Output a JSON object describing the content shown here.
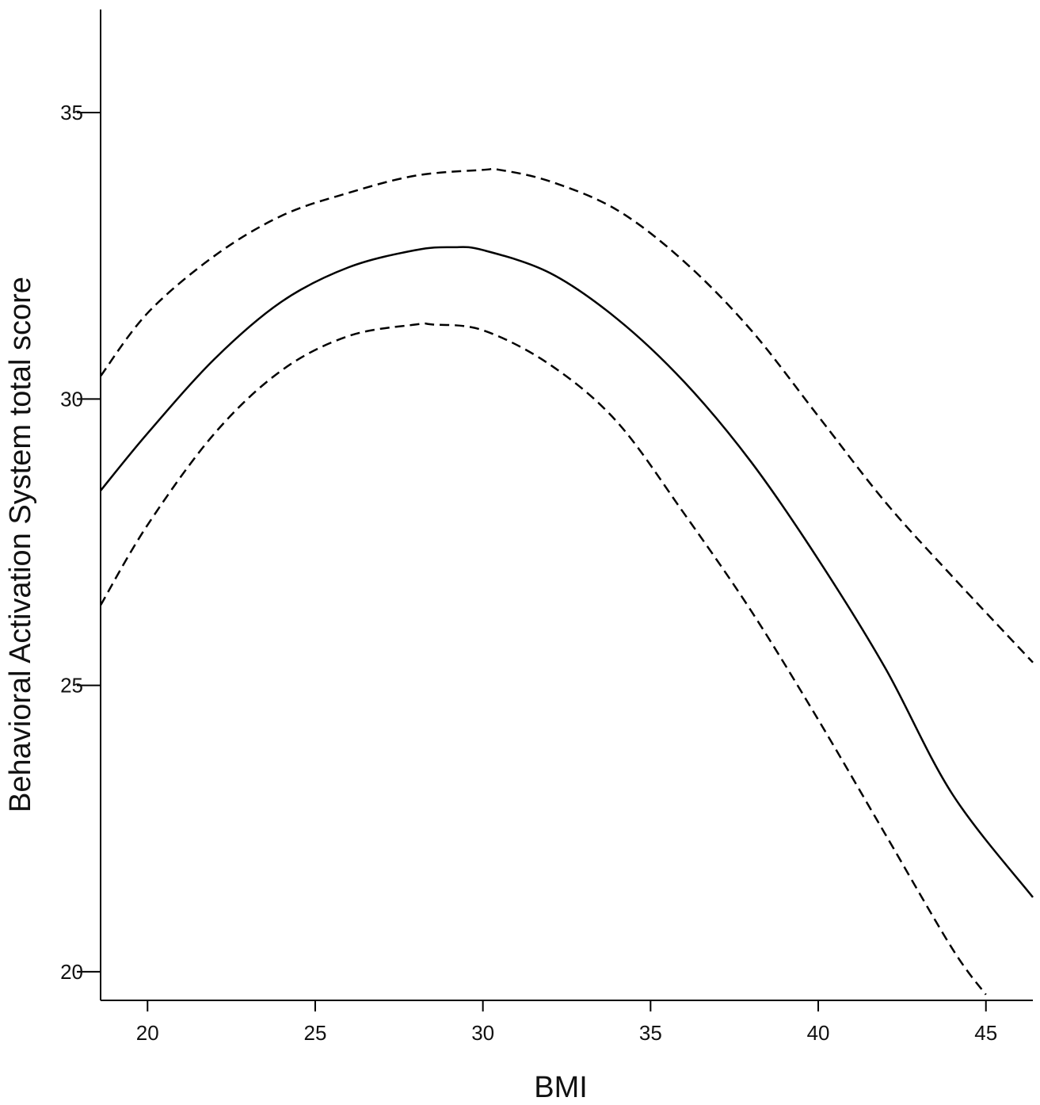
{
  "chart_data": {
    "type": "line",
    "title": "",
    "xlabel": "BMI",
    "ylabel": "Behavioral Activation System total score",
    "xlim": [
      18.6,
      46.4
    ],
    "ylim": [
      19.5,
      36.8
    ],
    "xticks": [
      20,
      25,
      30,
      35,
      40,
      45
    ],
    "yticks": [
      20,
      25,
      30,
      35
    ],
    "grid": false,
    "legend": "none",
    "series": [
      {
        "style": "solid",
        "color": "#000000",
        "x": [
          18.6,
          20,
          22,
          24,
          26,
          28,
          29.1,
          30,
          32,
          34,
          36,
          38,
          40,
          42,
          44,
          46.4
        ],
        "y": [
          28.4,
          29.4,
          30.7,
          31.7,
          32.3,
          32.6,
          32.65,
          32.6,
          32.2,
          31.4,
          30.3,
          28.9,
          27.2,
          25.3,
          23.1,
          21.3
        ]
      },
      {
        "style": "dashed",
        "color": "#000000",
        "x": [
          18.6,
          20,
          22,
          24,
          26,
          28,
          30,
          30.5,
          32,
          34,
          36,
          38,
          40,
          42,
          44,
          46.4
        ],
        "y": [
          30.4,
          31.5,
          32.5,
          33.2,
          33.6,
          33.9,
          34.0,
          34.0,
          33.8,
          33.3,
          32.4,
          31.2,
          29.7,
          28.2,
          26.9,
          25.4
        ]
      },
      {
        "style": "dashed",
        "color": "#000000",
        "x": [
          18.6,
          20,
          22,
          24,
          26,
          28,
          28.5,
          30,
          32,
          34,
          36,
          38,
          40,
          42,
          44,
          45
        ],
        "y": [
          26.4,
          27.8,
          29.4,
          30.5,
          31.1,
          31.3,
          31.3,
          31.2,
          30.6,
          29.6,
          28.0,
          26.3,
          24.4,
          22.4,
          20.4,
          19.6
        ]
      }
    ]
  }
}
